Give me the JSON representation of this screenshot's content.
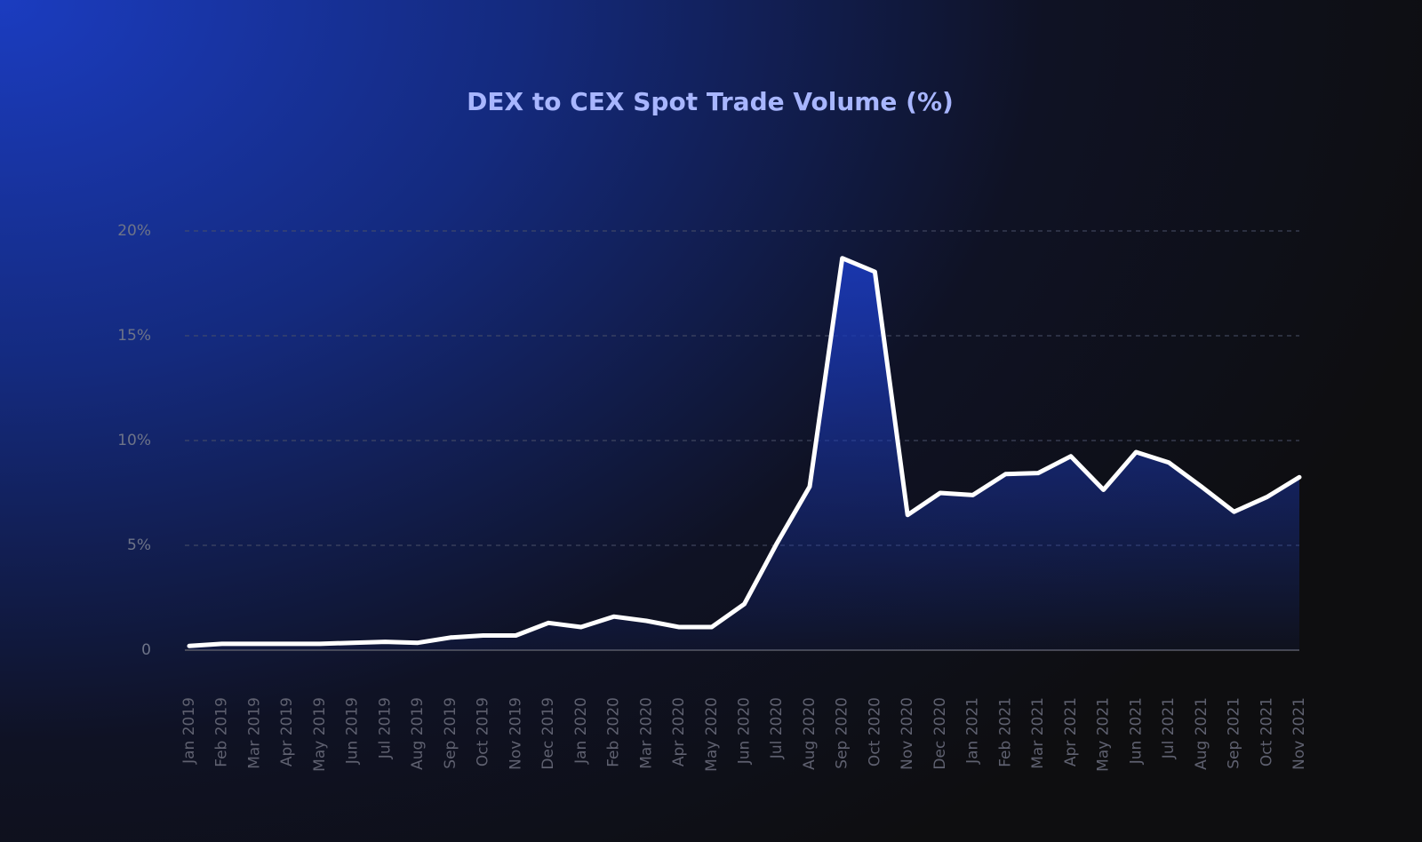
{
  "chart_data": {
    "type": "area",
    "title": "DEX to CEX Spot Trade Volume (%)",
    "categories": [
      "Jan 2019",
      "Feb 2019",
      "Mar 2019",
      "Apr 2019",
      "May 2019",
      "Jun 2019",
      "Jul 2019",
      "Aug 2019",
      "Sep 2019",
      "Oct 2019",
      "Nov 2019",
      "Dec 2019",
      "Jan 2020",
      "Feb 2020",
      "Mar 2020",
      "Apr 2020",
      "May 2020",
      "Jun 2020",
      "Jul 2020",
      "Aug 2020",
      "Sep 2020",
      "Oct 2020",
      "Nov 2020",
      "Dec 2020",
      "Jan 2021",
      "Feb 2021",
      "Mar 2021",
      "Apr 2021",
      "May 2021",
      "Jun 2021",
      "Jul 2021",
      "Aug 2021",
      "Sep 2021",
      "Oct 2021",
      "Nov 2021"
    ],
    "values": [
      0.2,
      0.3,
      0.3,
      0.3,
      0.3,
      0.35,
      0.4,
      0.35,
      0.6,
      0.7,
      0.7,
      1.3,
      1.1,
      1.6,
      1.4,
      1.1,
      1.1,
      2.2,
      5.1,
      7.8,
      18.7,
      18.05,
      6.45,
      7.5,
      7.4,
      8.4,
      8.45,
      9.25,
      7.65,
      9.45,
      8.95,
      7.8,
      6.6,
      7.3,
      8.25
    ],
    "color": "#ffffff",
    "fill_color": "#1a38b4",
    "ylim": [
      0,
      20
    ],
    "yticks": [
      0,
      {
        "value": 5,
        "label": "5%"
      },
      {
        "value": 10,
        "label": "10%"
      },
      {
        "value": 15,
        "label": "15%"
      },
      {
        "value": 20,
        "label": "20%"
      }
    ],
    "grid": true
  }
}
